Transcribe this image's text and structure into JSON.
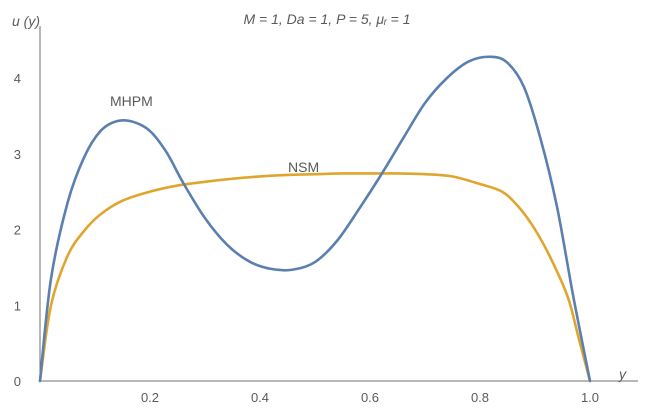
{
  "chart_data": {
    "type": "line",
    "title": "M = 1, Da = 1, P = 5, μᵣ = 1",
    "xlabel": "y",
    "ylabel": "u (y)",
    "xlim": [
      0,
      1.0
    ],
    "ylim": [
      0,
      4.5
    ],
    "grid": false,
    "x_ticks": [
      "0.2",
      "0.4",
      "0.6",
      "0.8",
      "1.0"
    ],
    "y_ticks": [
      "0",
      "1",
      "2",
      "3",
      "4"
    ],
    "colors": {
      "MHPM": "#5b7faf",
      "NSM": "#e0a52d",
      "axis": "#6f6f6f",
      "text": "#5a5a5a"
    },
    "series": [
      {
        "name": "MHPM",
        "x": [
          0,
          0.02,
          0.05,
          0.08,
          0.11,
          0.14,
          0.17,
          0.2,
          0.23,
          0.26,
          0.3,
          0.34,
          0.38,
          0.42,
          0.46,
          0.5,
          0.54,
          0.58,
          0.62,
          0.66,
          0.7,
          0.74,
          0.78,
          0.82,
          0.85,
          0.88,
          0.91,
          0.94,
          0.97,
          1.0
        ],
        "values": [
          0,
          1.35,
          2.35,
          2.95,
          3.3,
          3.43,
          3.42,
          3.3,
          3.02,
          2.62,
          2.15,
          1.8,
          1.58,
          1.48,
          1.47,
          1.57,
          1.85,
          2.27,
          2.72,
          3.2,
          3.67,
          4.0,
          4.22,
          4.28,
          4.2,
          3.88,
          3.2,
          2.3,
          1.1,
          0
        ]
      },
      {
        "name": "NSM",
        "x": [
          0,
          0.02,
          0.05,
          0.08,
          0.11,
          0.15,
          0.2,
          0.25,
          0.3,
          0.35,
          0.4,
          0.45,
          0.5,
          0.55,
          0.6,
          0.65,
          0.7,
          0.75,
          0.8,
          0.84,
          0.87,
          0.9,
          0.93,
          0.96,
          0.98,
          1.0
        ],
        "values": [
          0,
          1.0,
          1.65,
          1.98,
          2.2,
          2.38,
          2.5,
          2.58,
          2.63,
          2.67,
          2.7,
          2.72,
          2.73,
          2.74,
          2.74,
          2.74,
          2.73,
          2.7,
          2.6,
          2.5,
          2.3,
          2.0,
          1.6,
          1.1,
          0.55,
          0
        ]
      }
    ]
  }
}
